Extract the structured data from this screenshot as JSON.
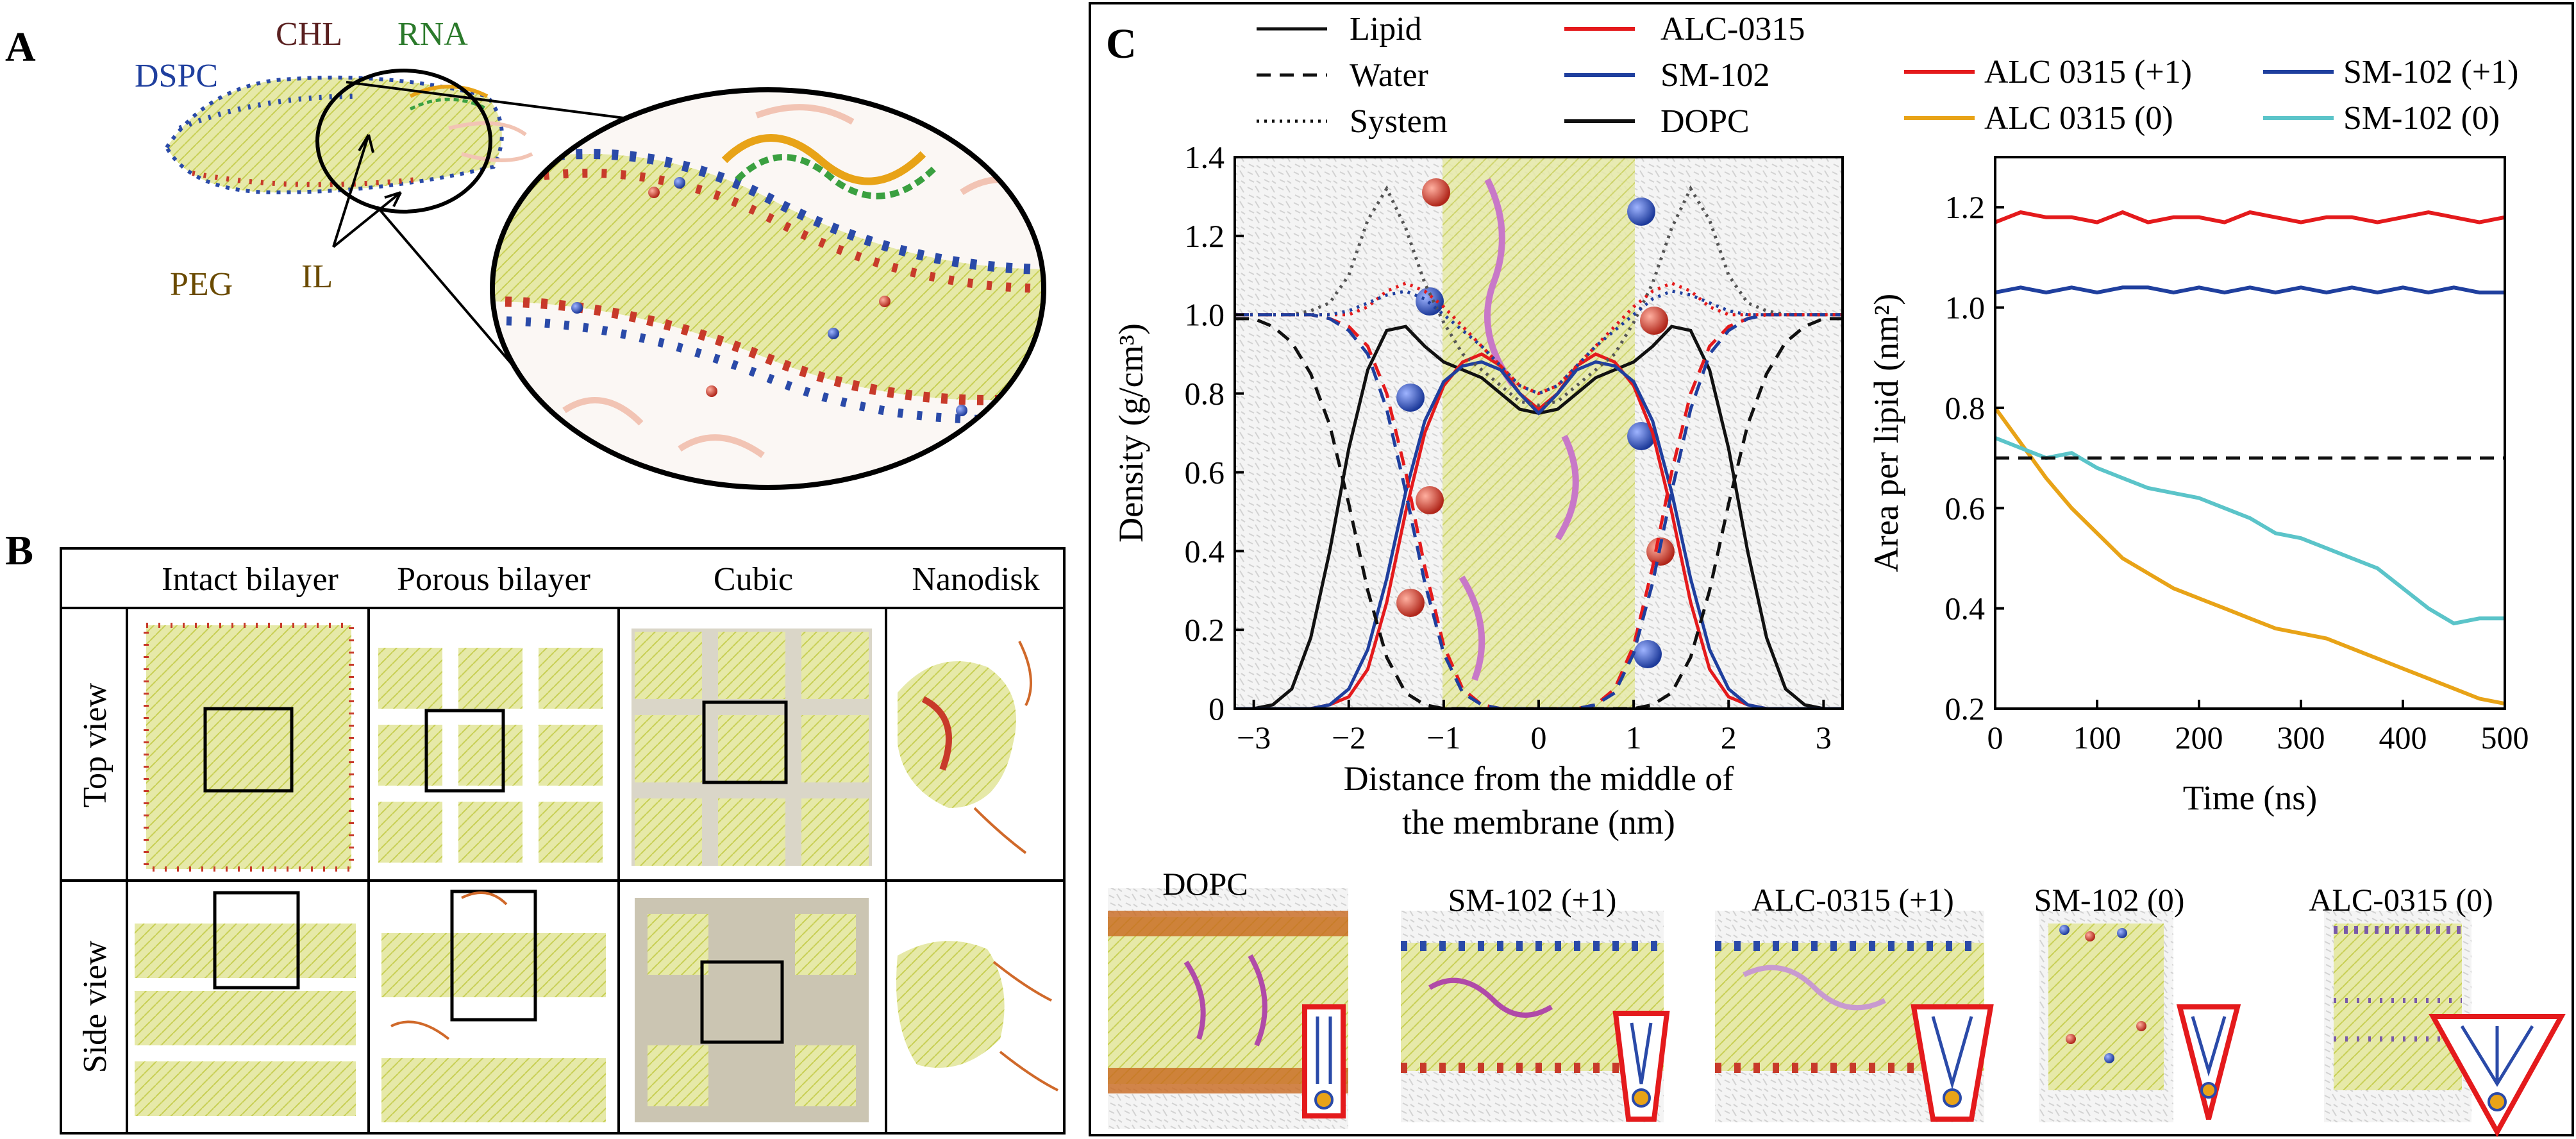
{
  "panels": {
    "A": {
      "letter": "A",
      "labels": {
        "dspc": "DSPC",
        "chl": "CHL",
        "rna": "RNA",
        "peg": "PEG",
        "il": "IL"
      }
    },
    "B": {
      "letter": "B",
      "columns": [
        "Intact bilayer",
        "Porous bilayer",
        "Cubic",
        "Nanodisk"
      ],
      "rows": [
        "Top view",
        "Side view"
      ]
    },
    "C": {
      "letter": "C",
      "snapshots": [
        "DOPC",
        "SM-102 (+1)",
        "ALC-0315 (+1)",
        "SM-102 (0)",
        "ALC-0315 (0)"
      ]
    }
  },
  "colors": {
    "lipid_line": "#111111",
    "alc0315": "#e41a1c",
    "sm102": "#1f3f9e",
    "dopc": "#111111",
    "alc0315_charged": "#e41a1c",
    "sm102_charged": "#1f3f9e",
    "alc0315_neutral": "#e8a317",
    "sm102_neutral": "#5bc4c9",
    "lipid_tail": "#d9dd6b",
    "head_red": "#c83a2a",
    "head_blue": "#2a4aa8",
    "peg_pink": "#f2c4b4",
    "rna_green": "#3aa040"
  },
  "chart_data": [
    {
      "type": "line",
      "legend": {
        "style_entries": [
          {
            "label": "Lipid",
            "dash": "solid"
          },
          {
            "label": "Water",
            "dash": "dashed"
          },
          {
            "label": "System",
            "dash": "dotted"
          }
        ],
        "color_entries": [
          {
            "label": "ALC-0315",
            "color": "#e41a1c"
          },
          {
            "label": "SM-102",
            "color": "#1f3f9e"
          },
          {
            "label": "DOPC",
            "color": "#111111"
          }
        ]
      },
      "xlabel_lines": [
        "Distance from the middle of",
        "the membrane (nm)"
      ],
      "ylabel": "Density (g/cm³)",
      "xlim": [
        -3.2,
        3.2
      ],
      "ylim": [
        0,
        1.4
      ],
      "xticks": [
        -3,
        -2,
        -1,
        0,
        1,
        2,
        3
      ],
      "xtick_labels": [
        "−3",
        "−2",
        "−1",
        "0",
        "1",
        "2",
        "3"
      ],
      "yticks": [
        0,
        0.2,
        0.4,
        0.6,
        0.8,
        1.0,
        1.2,
        1.4
      ],
      "ytick_labels": [
        "0",
        "0.2",
        "0.4",
        "0.6",
        "0.8",
        "1.0",
        "1.2",
        "1.4"
      ],
      "x": [
        -3.2,
        -3.0,
        -2.8,
        -2.6,
        -2.4,
        -2.2,
        -2.0,
        -1.8,
        -1.6,
        -1.4,
        -1.2,
        -1.0,
        -0.8,
        -0.6,
        -0.4,
        -0.2,
        0.0,
        0.2,
        0.4,
        0.6,
        0.8,
        1.0,
        1.2,
        1.4,
        1.6,
        1.8,
        2.0,
        2.2,
        2.4,
        2.6,
        2.8,
        3.0,
        3.2
      ],
      "series": [
        {
          "name": "DOPC",
          "style": "solid",
          "color": "#111111",
          "values": [
            0.0,
            0.0,
            0.01,
            0.05,
            0.18,
            0.4,
            0.66,
            0.86,
            0.96,
            0.97,
            0.92,
            0.88,
            0.86,
            0.84,
            0.8,
            0.76,
            0.75,
            0.76,
            0.8,
            0.84,
            0.86,
            0.88,
            0.92,
            0.97,
            0.96,
            0.86,
            0.66,
            0.4,
            0.18,
            0.05,
            0.01,
            0.0,
            0.0
          ]
        },
        {
          "name": "ALC-0315",
          "style": "solid",
          "color": "#e41a1c",
          "values": [
            0.0,
            0.0,
            0.0,
            0.0,
            0.0,
            0.01,
            0.03,
            0.1,
            0.27,
            0.5,
            0.7,
            0.82,
            0.88,
            0.9,
            0.87,
            0.8,
            0.76,
            0.8,
            0.87,
            0.9,
            0.88,
            0.82,
            0.7,
            0.5,
            0.27,
            0.1,
            0.03,
            0.01,
            0.0,
            0.0,
            0.0,
            0.0,
            0.0
          ]
        },
        {
          "name": "SM-102",
          "style": "solid",
          "color": "#1f3f9e",
          "values": [
            0.0,
            0.0,
            0.0,
            0.0,
            0.0,
            0.01,
            0.05,
            0.15,
            0.33,
            0.55,
            0.73,
            0.83,
            0.87,
            0.88,
            0.86,
            0.8,
            0.75,
            0.8,
            0.86,
            0.88,
            0.87,
            0.83,
            0.73,
            0.55,
            0.33,
            0.15,
            0.05,
            0.01,
            0.0,
            0.0,
            0.0,
            0.0,
            0.0
          ]
        },
        {
          "name": "DOPC",
          "style": "dashed",
          "color": "#111111",
          "values": [
            0.99,
            0.99,
            0.97,
            0.93,
            0.85,
            0.72,
            0.52,
            0.3,
            0.13,
            0.04,
            0.01,
            0.0,
            0.0,
            0.0,
            0.0,
            0.0,
            0.0,
            0.0,
            0.0,
            0.0,
            0.0,
            0.0,
            0.01,
            0.04,
            0.13,
            0.3,
            0.52,
            0.72,
            0.85,
            0.93,
            0.97,
            0.99,
            0.99
          ]
        },
        {
          "name": "ALC-0315",
          "style": "dashed",
          "color": "#e41a1c",
          "values": [
            1.0,
            1.0,
            1.0,
            1.0,
            1.0,
            0.99,
            0.97,
            0.92,
            0.8,
            0.6,
            0.36,
            0.16,
            0.05,
            0.01,
            0.0,
            0.0,
            0.0,
            0.0,
            0.0,
            0.01,
            0.05,
            0.16,
            0.36,
            0.6,
            0.8,
            0.92,
            0.97,
            0.99,
            1.0,
            1.0,
            1.0,
            1.0,
            1.0
          ]
        },
        {
          "name": "SM-102",
          "style": "dashed",
          "color": "#1f3f9e",
          "values": [
            1.0,
            1.0,
            1.0,
            1.0,
            1.0,
            0.99,
            0.96,
            0.9,
            0.76,
            0.55,
            0.32,
            0.14,
            0.04,
            0.01,
            0.0,
            0.0,
            0.0,
            0.0,
            0.0,
            0.01,
            0.04,
            0.14,
            0.32,
            0.55,
            0.76,
            0.9,
            0.96,
            0.99,
            1.0,
            1.0,
            1.0,
            1.0,
            1.0
          ]
        },
        {
          "name": "DOPC",
          "style": "dotted",
          "color": "#555555",
          "values": [
            1.0,
            1.0,
            1.0,
            1.0,
            1.01,
            1.03,
            1.1,
            1.24,
            1.32,
            1.22,
            1.08,
            0.98,
            0.9,
            0.86,
            0.82,
            0.78,
            0.77,
            0.78,
            0.82,
            0.86,
            0.9,
            0.98,
            1.08,
            1.22,
            1.32,
            1.24,
            1.1,
            1.03,
            1.01,
            1.0,
            1.0,
            1.0,
            1.0
          ]
        },
        {
          "name": "ALC-0315",
          "style": "dotted",
          "color": "#e41a1c",
          "values": [
            1.0,
            1.0,
            1.0,
            1.0,
            1.0,
            1.0,
            1.0,
            1.02,
            1.06,
            1.08,
            1.06,
            1.02,
            0.97,
            0.92,
            0.87,
            0.82,
            0.8,
            0.82,
            0.87,
            0.92,
            0.97,
            1.02,
            1.06,
            1.08,
            1.06,
            1.02,
            1.0,
            1.0,
            1.0,
            1.0,
            1.0,
            1.0,
            1.0
          ]
        },
        {
          "name": "SM-102",
          "style": "dotted",
          "color": "#1f3f9e",
          "values": [
            1.0,
            1.0,
            1.0,
            1.0,
            1.0,
            1.0,
            1.01,
            1.03,
            1.05,
            1.06,
            1.04,
            1.0,
            0.96,
            0.92,
            0.87,
            0.82,
            0.8,
            0.82,
            0.87,
            0.92,
            0.96,
            1.0,
            1.04,
            1.06,
            1.05,
            1.03,
            1.01,
            1.0,
            1.0,
            1.0,
            1.0,
            1.0,
            1.0
          ]
        }
      ]
    },
    {
      "type": "line",
      "legend": {
        "entries": [
          {
            "label": "ALC 0315 (+1)",
            "color": "#e41a1c"
          },
          {
            "label": "SM-102 (+1)",
            "color": "#1f3f9e"
          },
          {
            "label": "ALC 0315 (0)",
            "color": "#e8a317"
          },
          {
            "label": "SM-102 (0)",
            "color": "#5bc4c9"
          }
        ]
      },
      "xlabel": "Time (ns)",
      "ylabel": "Area per lipid (nm²)",
      "xlim": [
        0,
        500
      ],
      "ylim": [
        0.2,
        1.3
      ],
      "xticks": [
        0,
        100,
        200,
        300,
        400,
        500
      ],
      "xtick_labels": [
        "0",
        "100",
        "200",
        "300",
        "400",
        "500"
      ],
      "yticks": [
        0.2,
        0.4,
        0.6,
        0.8,
        1.0,
        1.2
      ],
      "ytick_labels": [
        "0.2",
        "0.4",
        "0.6",
        "0.8",
        "1.0",
        "1.2"
      ],
      "x": [
        0,
        25,
        50,
        75,
        100,
        125,
        150,
        175,
        200,
        225,
        250,
        275,
        300,
        325,
        350,
        375,
        400,
        425,
        450,
        475,
        500
      ],
      "series": [
        {
          "name": "ALC 0315 (+1)",
          "color": "#e41a1c",
          "values": [
            1.17,
            1.19,
            1.18,
            1.18,
            1.17,
            1.19,
            1.17,
            1.18,
            1.18,
            1.17,
            1.19,
            1.18,
            1.17,
            1.18,
            1.18,
            1.17,
            1.18,
            1.19,
            1.18,
            1.17,
            1.18
          ]
        },
        {
          "name": "SM-102 (+1)",
          "color": "#1f3f9e",
          "values": [
            1.03,
            1.04,
            1.03,
            1.04,
            1.03,
            1.04,
            1.04,
            1.03,
            1.04,
            1.03,
            1.04,
            1.03,
            1.04,
            1.03,
            1.04,
            1.03,
            1.04,
            1.03,
            1.04,
            1.03,
            1.03
          ]
        },
        {
          "name": "ALC 0315 (0)",
          "color": "#e8a317",
          "values": [
            0.8,
            0.73,
            0.66,
            0.6,
            0.55,
            0.5,
            0.47,
            0.44,
            0.42,
            0.4,
            0.38,
            0.36,
            0.35,
            0.34,
            0.32,
            0.3,
            0.28,
            0.26,
            0.24,
            0.22,
            0.21
          ]
        },
        {
          "name": "SM-102 (0)",
          "color": "#5bc4c9",
          "values": [
            0.74,
            0.72,
            0.7,
            0.71,
            0.68,
            0.66,
            0.64,
            0.63,
            0.62,
            0.6,
            0.58,
            0.55,
            0.54,
            0.52,
            0.5,
            0.48,
            0.44,
            0.4,
            0.37,
            0.38,
            0.38
          ]
        }
      ],
      "reference_line": {
        "y": 0.7,
        "style": "dashed",
        "color": "#111111"
      }
    }
  ]
}
